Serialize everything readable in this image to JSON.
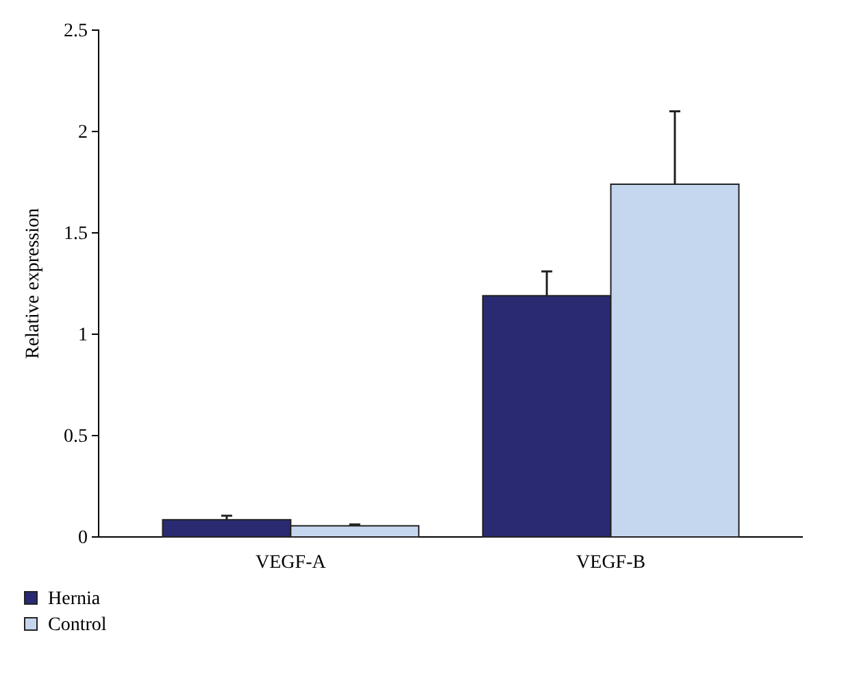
{
  "chart_data": {
    "type": "bar",
    "ylabel": "Relative expression",
    "categories": [
      "VEGF-A",
      "VEGF-B"
    ],
    "series": [
      {
        "name": "Hernia",
        "color": "#2a2a72",
        "values": [
          0.085,
          1.19
        ],
        "errors": [
          [
            0.085,
            0.105
          ],
          [
            1.19,
            1.31
          ]
        ]
      },
      {
        "name": "Control",
        "color": "#c5d7ee",
        "values": [
          0.055,
          1.74
        ],
        "errors": [
          [
            0.055,
            0.062
          ],
          [
            1.74,
            2.1
          ]
        ]
      }
    ],
    "ylim": [
      0,
      2.5
    ],
    "yticks": [
      0,
      0.5,
      1,
      1.5,
      2,
      2.5
    ],
    "legend": "bottom left"
  }
}
